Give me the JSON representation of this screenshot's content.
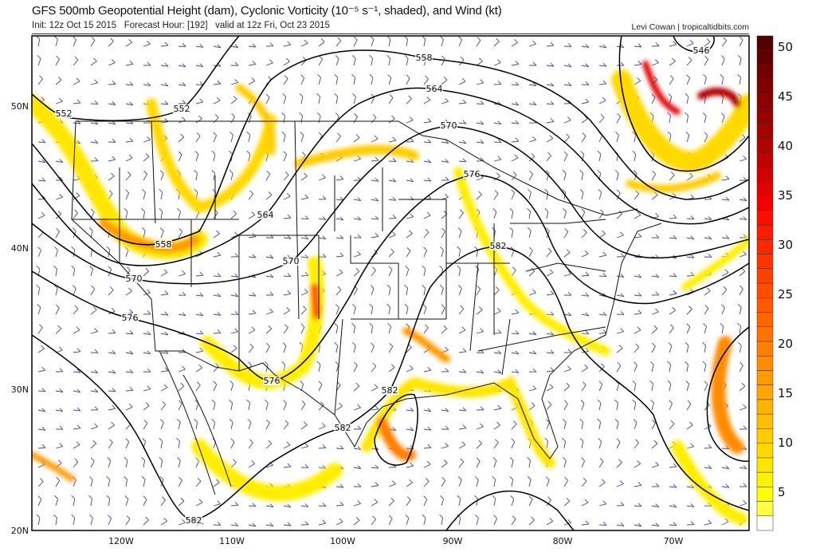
{
  "header": {
    "title": "GFS 500mb Geopotential Height (dam), Cyclonic Vorticity (10⁻⁵ s⁻¹, shaded), and Wind (kt)",
    "init": "Init: 12z Oct 15 2015   Forecast Hour: [192]   valid at 12z Fri, Oct 23 2015",
    "credit": "Levi Cowan | tropicaltidbits.com"
  },
  "axes": {
    "lon_labels": [
      "120W",
      "110W",
      "100W",
      "90W",
      "80W",
      "70W"
    ],
    "lat_labels": [
      "50N",
      "40N",
      "30N",
      "20N"
    ]
  },
  "contour_labels": [
    "552",
    "552",
    "558",
    "564",
    "570",
    "576",
    "582",
    "564",
    "558",
    "570",
    "570",
    "576",
    "576",
    "582",
    "582",
    "582",
    "546"
  ],
  "colorbar": {
    "ticks": [
      "50",
      "45",
      "40",
      "35",
      "30",
      "25",
      "20",
      "15",
      "10",
      "5"
    ],
    "colors": [
      "#ffffff",
      "#ffff40",
      "#ffff00",
      "#fff200",
      "#ffe600",
      "#ffd900",
      "#ffcc00",
      "#ffbf00",
      "#ffb300",
      "#ffa600",
      "#ff9900",
      "#ff8c00",
      "#ff8000",
      "#ff7300",
      "#ff6600",
      "#ff5900",
      "#ff4d00",
      "#ff4000",
      "#ff3300",
      "#ff2600",
      "#ff1a00",
      "#ff0d00",
      "#f00000",
      "#e00000",
      "#d00000",
      "#c00000",
      "#b30000",
      "#a60000",
      "#990000",
      "#8c0000",
      "#800000",
      "#700000",
      "#600000",
      "#500000"
    ]
  },
  "colors": {
    "contour": "#000000",
    "barb": "#44448a",
    "border": "#111111"
  }
}
